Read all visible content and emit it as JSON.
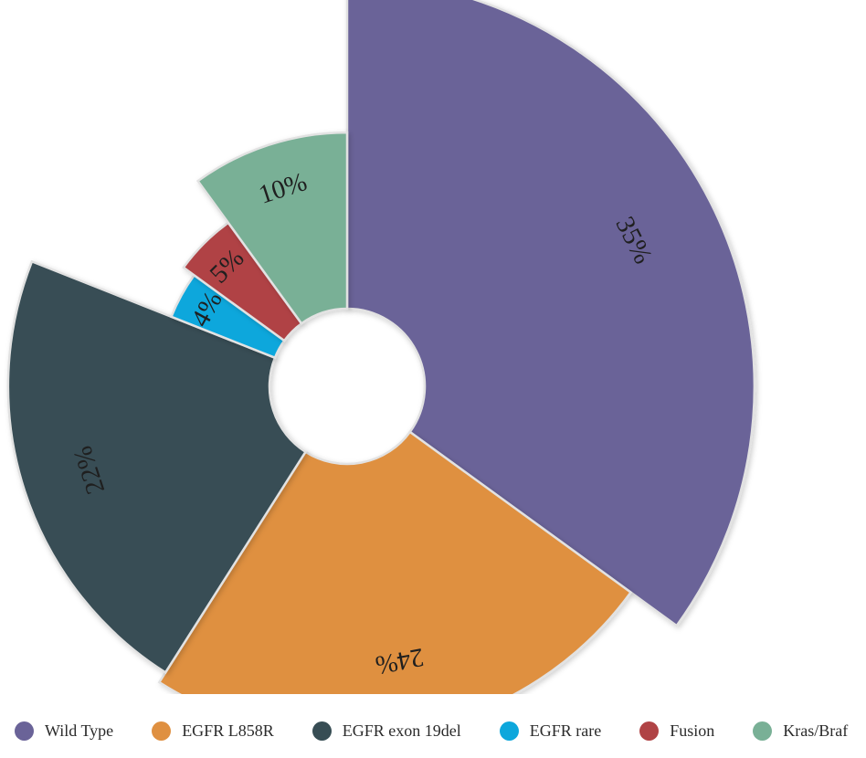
{
  "chart_data": {
    "type": "pie",
    "variant": "variable-radius donut (rose)",
    "title": "",
    "slices": [
      {
        "name": "Wild Type",
        "value": 35,
        "label": "35%",
        "color": "#6a6398"
      },
      {
        "name": "EGFR L858R",
        "value": 24,
        "label": "24%",
        "color": "#df9041"
      },
      {
        "name": "EGFR exon 19del",
        "value": 22,
        "label": "22%",
        "color": "#374d54"
      },
      {
        "name": "EGFR rare",
        "value": 4,
        "label": "4%",
        "color": "#0da7dc"
      },
      {
        "name": "Fusion",
        "value": 5,
        "label": "5%",
        "color": "#b04345"
      },
      {
        "name": "Kras/Braf",
        "value": 10,
        "label": "10%",
        "color": "#79b096"
      }
    ],
    "legend_position": "bottom",
    "slice_order": "clockwise from top"
  }
}
